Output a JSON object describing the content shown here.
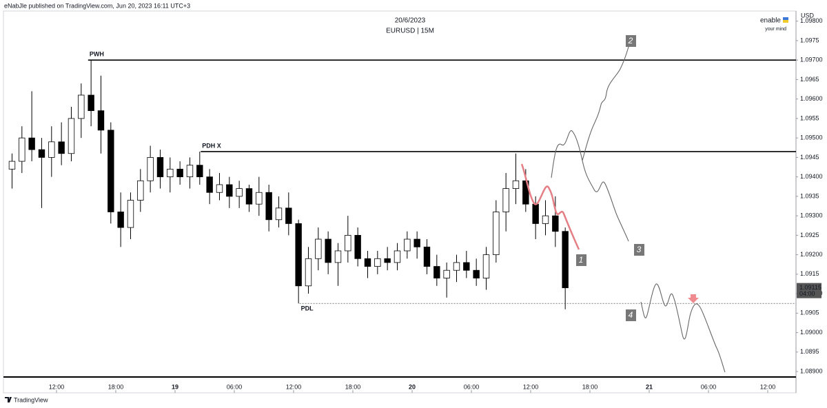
{
  "header": {
    "publisher": "eNabJle published on TradingView.com, Jun 20, 2023 16:11 UTC+3",
    "brand": "enable",
    "tagline": "your mind"
  },
  "footer": {
    "logo_text": "TradingView"
  },
  "chart_data": {
    "type": "candlestick",
    "title": "20/6/2023",
    "subtitle": "EURUSD | 15M",
    "y_axis_label": "USD",
    "x": [
      7,
      8,
      9,
      10,
      11,
      12,
      13,
      14,
      15,
      16,
      17,
      18,
      19,
      20,
      21,
      22,
      23,
      24,
      25,
      26,
      27,
      28,
      29,
      30,
      31,
      32,
      33,
      34,
      35,
      36,
      37,
      38,
      39,
      40,
      41,
      42,
      43,
      44,
      45,
      46,
      47,
      48,
      49,
      50,
      51,
      52,
      53,
      54,
      55,
      56,
      57,
      58,
      59,
      60,
      61,
      62,
      63
    ],
    "open": [
      1.0942,
      1.0944,
      1.095,
      1.0947,
      1.0945,
      1.0949,
      1.0946,
      1.0955,
      1.0961,
      1.0957,
      1.0952,
      1.0931,
      1.0927,
      1.0934,
      1.0939,
      1.0945,
      1.094,
      1.0942,
      1.094,
      1.0943,
      1.094,
      1.0936,
      1.0938,
      1.0935,
      1.0937,
      1.0933,
      1.0936,
      1.0929,
      1.0932,
      1.0928,
      1.0912,
      1.0919,
      1.0924,
      1.0918,
      1.0921,
      1.0925,
      1.0919,
      1.0917,
      1.0919,
      1.0918,
      1.0921,
      1.0924,
      1.0922,
      1.0917,
      1.0914,
      1.0916,
      1.0918,
      1.0916,
      1.0914,
      1.092,
      1.0931,
      1.0937,
      1.0939,
      1.0933,
      1.0928,
      1.093,
      1.0926
    ],
    "high": [
      1.0946,
      1.0953,
      1.0962,
      1.095,
      1.0953,
      1.0954,
      1.0958,
      1.0964,
      1.097,
      1.0966,
      1.0954,
      1.0936,
      1.0936,
      1.0942,
      1.0948,
      1.0947,
      1.0945,
      1.0944,
      1.0945,
      1.09465,
      1.0942,
      1.0941,
      1.094,
      1.0939,
      1.0938,
      1.094,
      1.0938,
      1.0935,
      1.0936,
      1.0929,
      1.0922,
      1.0927,
      1.0926,
      1.0923,
      1.093,
      1.0927,
      1.0921,
      1.0921,
      1.0922,
      1.0923,
      1.0926,
      1.0926,
      1.0924,
      1.092,
      1.0918,
      1.092,
      1.0921,
      1.0919,
      1.0922,
      1.0934,
      1.0941,
      1.0946,
      1.0942,
      1.0935,
      1.0934,
      1.0935,
      1.0927
    ],
    "low": [
      1.0937,
      1.0941,
      1.0944,
      1.0932,
      1.094,
      1.0943,
      1.0944,
      1.095,
      1.0953,
      1.0946,
      1.0928,
      1.0922,
      1.0924,
      1.0931,
      1.0936,
      1.0937,
      1.0936,
      1.0938,
      1.0937,
      1.0938,
      1.0933,
      1.0934,
      1.0932,
      1.0932,
      1.0931,
      1.093,
      1.0926,
      1.0927,
      1.0925,
      1.09075,
      1.091,
      1.0916,
      1.0915,
      1.0912,
      1.0918,
      1.0917,
      1.0914,
      1.0915,
      1.0916,
      1.0916,
      1.0919,
      1.0919,
      1.0915,
      1.0912,
      1.0909,
      1.0913,
      1.0914,
      1.0912,
      1.0911,
      1.0918,
      1.0926,
      1.0933,
      1.0931,
      1.0924,
      1.0925,
      1.0922,
      1.0906
    ],
    "close": [
      1.0944,
      1.095,
      1.0947,
      1.0945,
      1.0949,
      1.0946,
      1.0955,
      1.0961,
      1.0957,
      1.0952,
      1.0931,
      1.0927,
      1.0934,
      1.0939,
      1.0945,
      1.094,
      1.0942,
      1.094,
      1.0943,
      1.094,
      1.0936,
      1.0938,
      1.0935,
      1.0937,
      1.0933,
      1.0936,
      1.0929,
      1.0932,
      1.0928,
      1.0912,
      1.0919,
      1.0924,
      1.0918,
      1.0921,
      1.0925,
      1.0919,
      1.0917,
      1.0919,
      1.0918,
      1.0921,
      1.0924,
      1.0922,
      1.0917,
      1.0914,
      1.0916,
      1.0918,
      1.0916,
      1.0914,
      1.092,
      1.0931,
      1.0937,
      1.0939,
      1.0933,
      1.0928,
      1.093,
      1.0926,
      1.09115
    ],
    "up_color": "#ffffff",
    "down_color": "#000000",
    "wick_color": "#000000",
    "xlim": [
      6.63,
      86.86
    ],
    "xticks": [
      {
        "value": 12,
        "label": "12:00"
      },
      {
        "value": 18,
        "label": "18:00"
      },
      {
        "value": 24,
        "label": "19"
      },
      {
        "value": 30,
        "label": "06:00"
      },
      {
        "value": 36,
        "label": "12:00"
      },
      {
        "value": 42,
        "label": "18:00"
      },
      {
        "value": 48,
        "label": "20"
      },
      {
        "value": 54,
        "label": "06:00"
      },
      {
        "value": 60,
        "label": "12:00"
      },
      {
        "value": 66,
        "label": "18:00"
      },
      {
        "value": 72,
        "label": "21"
      },
      {
        "value": 78,
        "label": "06:00"
      },
      {
        "value": 84,
        "label": "12:00"
      }
    ],
    "ylim": [
      1.08886,
      1.09826
    ],
    "yticks": [
      {
        "value": 1.089,
        "label": "1.08900"
      },
      1.0895,
      {
        "value": 1.09,
        "label": "1.09000"
      },
      1.0905,
      {
        "value": 1.091,
        "label": "1.09100"
      },
      1.0915,
      {
        "value": 1.092,
        "label": "1.09200"
      },
      1.0925,
      {
        "value": 1.093,
        "label": "1.09300"
      },
      1.0935,
      {
        "value": 1.094,
        "label": "1.09400"
      },
      1.0945,
      {
        "value": 1.095,
        "label": "1.09500"
      },
      1.0955,
      {
        "value": 1.096,
        "label": "1.09600"
      },
      1.0965,
      {
        "value": 1.097,
        "label": "1.09700"
      },
      1.0975,
      {
        "value": 1.098,
        "label": "1.09800"
      }
    ],
    "grid": false,
    "last_price": 1.09115,
    "countdown": "04:00",
    "levels": [
      {
        "label": "PWH",
        "value": 1.097,
        "x": 15.2,
        "dashed": false
      },
      {
        "label": "PDH X",
        "value": 1.09465,
        "x": 26.6,
        "dashed": false
      },
      {
        "label": "PDL",
        "value": 1.09075,
        "x": 36.6,
        "dashed": true
      }
    ],
    "annotations": [
      "1",
      "2",
      "3",
      "4"
    ]
  }
}
